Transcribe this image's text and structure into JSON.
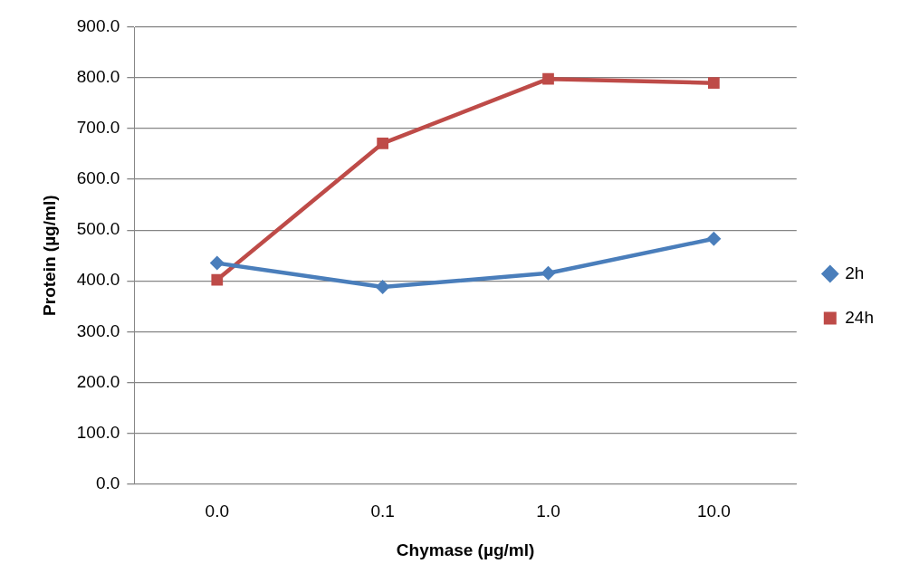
{
  "chart_data": {
    "type": "line",
    "xlabel": "Chymase (µg/ml)",
    "ylabel": "Protein (µg/ml)",
    "categories": [
      "0.0",
      "0.1",
      "1.0",
      "10.0"
    ],
    "series": [
      {
        "name": "2h",
        "color": "#4a7ebb",
        "marker": "diamond",
        "values": [
          435,
          388,
          415,
          483
        ]
      },
      {
        "name": "24h",
        "color": "#be4b48",
        "marker": "square",
        "values": [
          402,
          671,
          798,
          790
        ]
      }
    ],
    "ylim": [
      0,
      900
    ],
    "yticks": [
      {
        "value": 0,
        "label": "0.0"
      },
      {
        "value": 100,
        "label": "100.0"
      },
      {
        "value": 200,
        "label": "200.0"
      },
      {
        "value": 300,
        "label": "300.0"
      },
      {
        "value": 400,
        "label": "400.0"
      },
      {
        "value": 500,
        "label": "500.0"
      },
      {
        "value": 600,
        "label": "600.0"
      },
      {
        "value": 700,
        "label": "700.0"
      },
      {
        "value": 800,
        "label": "800.0"
      },
      {
        "value": 900,
        "label": "900.0"
      }
    ],
    "grid": "y",
    "legend": "right",
    "line_style": "solid"
  }
}
